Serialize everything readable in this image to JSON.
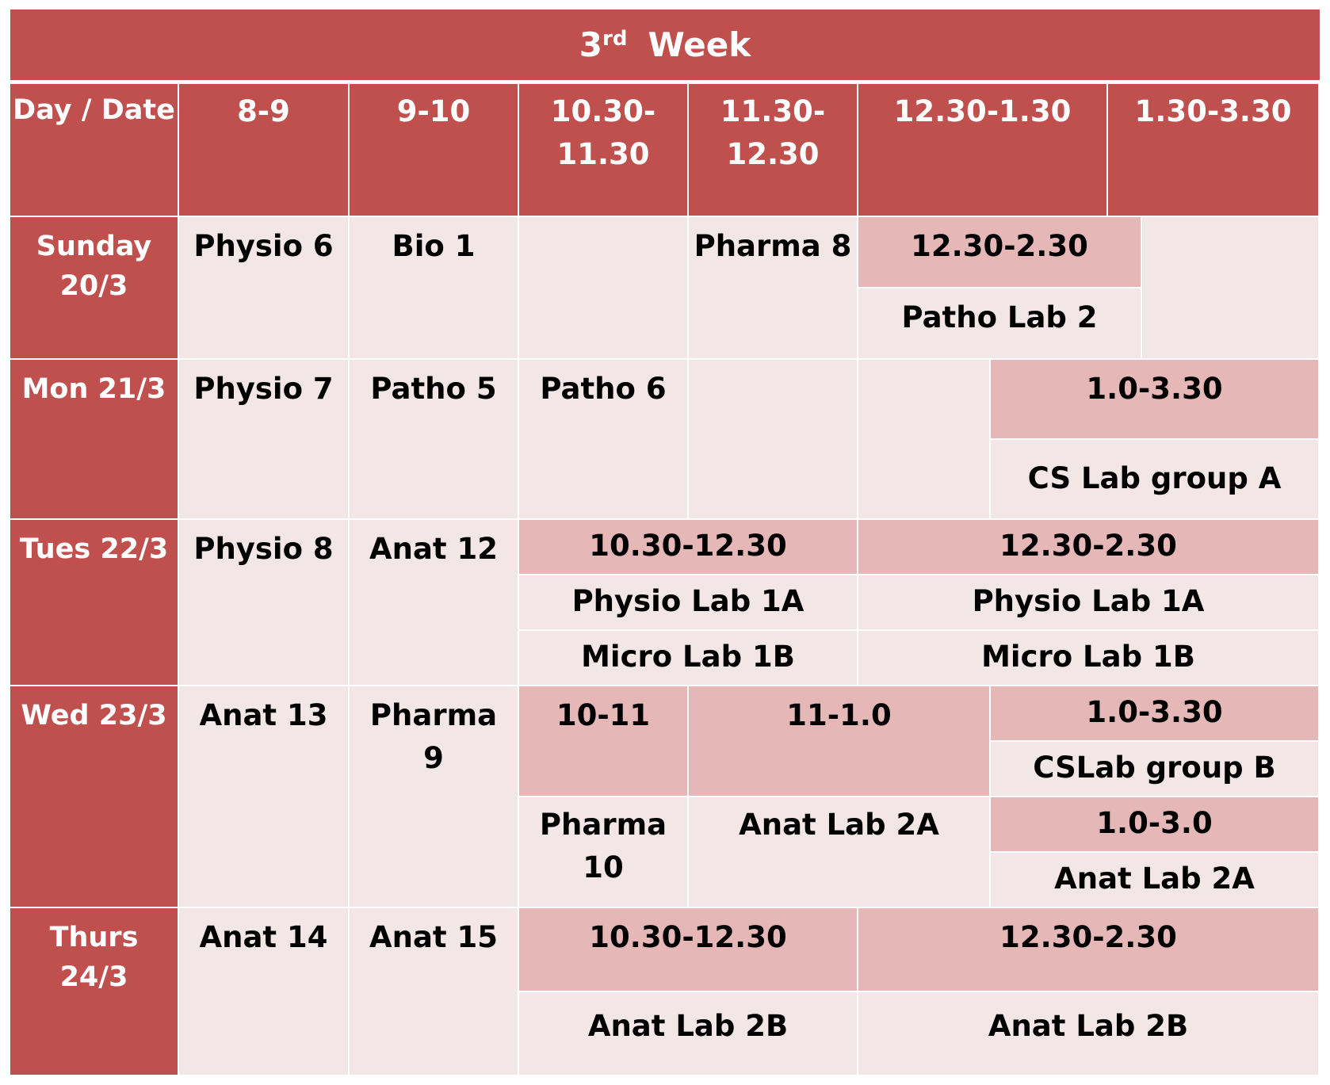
{
  "title": {
    "ordinal_number": "3",
    "ordinal_suffix": "rd",
    "word": "Week"
  },
  "header": {
    "day_date": "Day / Date",
    "slots": [
      "8-9",
      "9-10",
      "10.30-\n11.30",
      "11.30-\n12.30",
      "12.30-1.30",
      "1.30-3.30"
    ]
  },
  "days": {
    "sunday": {
      "label": "Sunday\n20/3"
    },
    "monday": {
      "label": "Mon  21/3"
    },
    "tuesday": {
      "label": "Tues  22/3"
    },
    "wednesday": {
      "label": "Wed  23/3"
    },
    "thursday": {
      "label": "Thurs\n24/3"
    }
  },
  "cells": {
    "sun_8_9": "Physio  6",
    "sun_9_10": "Bio 1",
    "sun_11_30": "Pharma 8",
    "sun_lab_time": "12.30-2.30",
    "sun_lab_name": "Patho Lab 2",
    "mon_8_9": "Physio 7",
    "mon_9_10": "Patho 5",
    "mon_10_30": "Patho 6",
    "mon_lab_time": "1.0-3.30",
    "mon_lab_name": "CS Lab group A",
    "tue_8_9": "Physio  8",
    "tue_9_10": "Anat  12",
    "tue_lab1_time": "10.30-12.30",
    "tue_lab1_a": "Physio Lab 1A",
    "tue_lab1_b": "Micro Lab 1B",
    "tue_lab2_time": "12.30-2.30",
    "tue_lab2_a": "Physio Lab 1A",
    "tue_lab2_b": "Micro Lab 1B",
    "wed_8_9": "Anat 13",
    "wed_9_10": "Pharma\n9",
    "wed_10_11_time": "10-11",
    "wed_10_11_name": "Pharma\n10",
    "wed_11_1_time": "11-1.0",
    "wed_11_1_name": "Anat Lab 2A",
    "wed_cs_time": "1.0-3.30",
    "wed_cs_name": "CSLab group B",
    "wed_anat_time": "1.0-3.0",
    "wed_anat_name": "Anat Lab 2A",
    "thu_8_9": "Anat  14",
    "thu_9_10": "Anat   15",
    "thu_lab1_time": "10.30-12.30",
    "thu_lab1_name": "Anat Lab 2B",
    "thu_lab2_time": "12.30-2.30",
    "thu_lab2_name": "Anat Lab 2B"
  },
  "colors": {
    "header": "#c0504d",
    "cell_light": "#f2e6e6",
    "cell_pink": "#e6b7b7"
  }
}
